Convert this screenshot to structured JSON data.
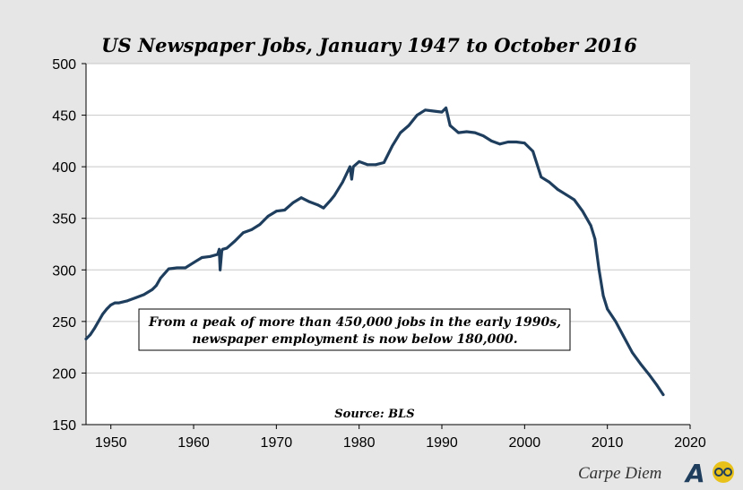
{
  "chart_data": {
    "type": "line",
    "title": "US Newspaper Jobs, January 1947 to October 2016",
    "xlabel": "",
    "ylabel": "",
    "xlim": [
      1947,
      2020
    ],
    "ylim": [
      150,
      500
    ],
    "x_ticks": [
      1950,
      1960,
      1970,
      1980,
      1990,
      2000,
      2010,
      2020
    ],
    "y_ticks": [
      150,
      200,
      250,
      300,
      350,
      400,
      450,
      500
    ],
    "grid": "horizontal",
    "color": "#1f3e5e",
    "series": [
      {
        "x": [
          1947.0,
          1947.5,
          1948.0,
          1948.5,
          1949.0,
          1949.5,
          1950.0,
          1950.5,
          1951.0,
          1952.0,
          1953.0,
          1954.0,
          1955.0,
          1955.5,
          1956.0,
          1957.0,
          1958.0,
          1959.0,
          1960.0,
          1961.0,
          1962.0,
          1962.9,
          1963.1,
          1963.2,
          1963.4,
          1963.5,
          1964.0,
          1965.0,
          1966.0,
          1967.0,
          1968.0,
          1969.0,
          1970.0,
          1971.0,
          1972.0,
          1973.0,
          1974.0,
          1975.0,
          1975.7,
          1976.5,
          1977.0,
          1978.0,
          1978.9,
          1979.1,
          1979.3,
          1980.0,
          1981.0,
          1982.0,
          1983.0,
          1984.0,
          1985.0,
          1986.0,
          1987.0,
          1988.0,
          1989.0,
          1990.0,
          1990.5,
          1991.0,
          1992.0,
          1993.0,
          1994.0,
          1995.0,
          1996.0,
          1997.0,
          1998.0,
          1999.0,
          2000.0,
          2001.0,
          2002.0,
          2003.0,
          2004.0,
          2005.0,
          2006.0,
          2007.0,
          2008.0,
          2008.5,
          2009.0,
          2009.5,
          2010.0,
          2011.0,
          2012.0,
          2013.0,
          2014.0,
          2015.0,
          2016.0,
          2016.75
        ],
        "y": [
          233,
          237,
          243,
          250,
          257,
          262,
          266,
          268,
          268,
          270,
          273,
          276,
          281,
          285,
          292,
          301,
          302,
          302,
          307,
          312,
          313,
          315,
          320,
          300,
          318,
          320,
          321,
          328,
          336,
          339,
          344,
          352,
          357,
          358,
          365,
          370,
          366,
          363,
          360,
          367,
          372,
          385,
          400,
          388,
          400,
          405,
          402,
          402,
          404,
          420,
          433,
          440,
          450,
          455,
          454,
          453,
          457,
          440,
          433,
          434,
          433,
          430,
          425,
          422,
          424,
          424,
          423,
          415,
          390,
          385,
          378,
          373,
          368,
          357,
          343,
          330,
          300,
          275,
          262,
          250,
          235,
          220,
          209,
          199,
          188,
          179
        ]
      }
    ],
    "annotation": [
      "From a peak of more than 450,000 jobs in the early 1990s,",
      "newspaper employment is now below 180,000."
    ],
    "source": "Source: BLS"
  },
  "branding": {
    "text": "Carpe Diem",
    "logo_text": "AEI",
    "logo_colors": [
      "#1f3e5e",
      "#e8c21a"
    ]
  }
}
